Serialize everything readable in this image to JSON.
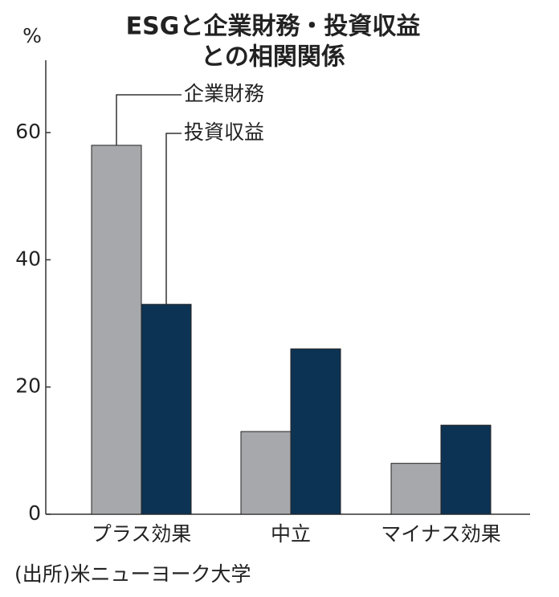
{
  "chart_data": {
    "type": "bar",
    "title_lines": [
      "ESGと企業財務・投資収益",
      "との相関関係"
    ],
    "y_unit": "%",
    "categories": [
      "プラス効果",
      "中立",
      "マイナス効果"
    ],
    "series": [
      {
        "name": "企業財務",
        "color": "#a7a8ab",
        "values": [
          58,
          13,
          8
        ]
      },
      {
        "name": "投資収益",
        "color": "#0d3354",
        "values": [
          33,
          26,
          14
        ]
      }
    ],
    "ylim": [
      0,
      72
    ],
    "yticks": [
      0,
      20,
      40,
      60
    ],
    "source": "(出所)米ニューヨーク大学"
  }
}
